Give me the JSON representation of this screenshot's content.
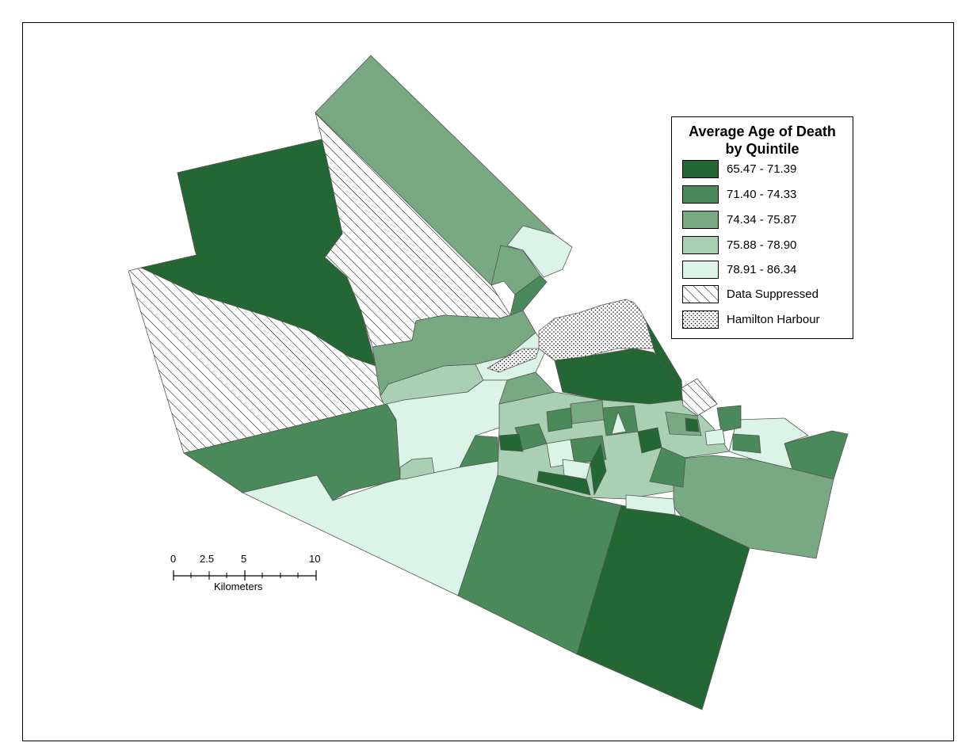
{
  "legend": {
    "title_line1": "Average Age of Death",
    "title_line2": "by Quintile",
    "items": [
      {
        "label": "65.47 - 71.39",
        "color": "#236734"
      },
      {
        "label": "71.40 - 74.33",
        "color": "#4a8a5a"
      },
      {
        "label": "74.34 - 75.87",
        "color": "#79a983"
      },
      {
        "label": "75.88 - 78.90",
        "color": "#a9d0b2"
      },
      {
        "label": "78.91 - 86.34",
        "color": "#dcf3e7"
      },
      {
        "label": "Data Suppressed",
        "pattern": "hatch"
      },
      {
        "label": "Hamilton Harbour",
        "pattern": "dots"
      }
    ]
  },
  "scalebar": {
    "ticks": [
      "0",
      "2.5",
      "5",
      "10"
    ],
    "unit": "Kilometers"
  }
}
